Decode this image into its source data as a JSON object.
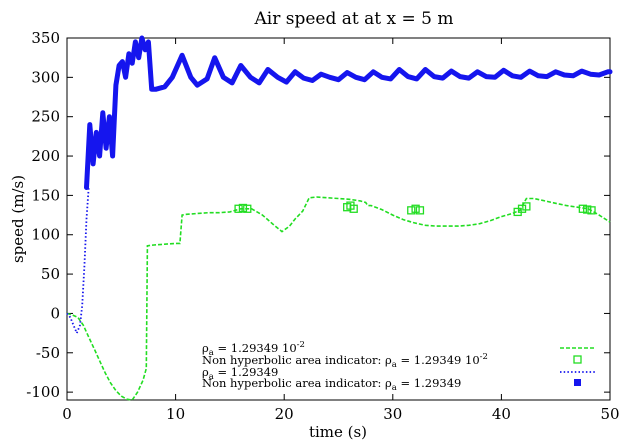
{
  "chart_data": {
    "type": "line",
    "title": "Air speed at at x = 5 m",
    "xlabel": "time (s)",
    "ylabel": "speed (m/s)",
    "xlim": [
      0,
      50
    ],
    "ylim": [
      -110,
      350
    ],
    "xticks": [
      0,
      10,
      20,
      30,
      40,
      50
    ],
    "yticks": [
      -100,
      -50,
      0,
      50,
      100,
      150,
      200,
      250,
      300,
      350
    ],
    "grid": false,
    "legend_position": "bottom-right",
    "colors": {
      "green": "#22dd22",
      "blue": "#1515ee"
    },
    "series": [
      {
        "legend": {
          "pre": "ρ",
          "sub": "a",
          "post": " = 1.29349 10",
          "sup": "-2"
        },
        "style": "dashed",
        "color": "green",
        "points": [
          [
            0,
            0
          ],
          [
            0.5,
            -2
          ],
          [
            1,
            -5
          ],
          [
            1.5,
            -15
          ],
          [
            2,
            -30
          ],
          [
            2.5,
            -45
          ],
          [
            3,
            -60
          ],
          [
            3.5,
            -75
          ],
          [
            4,
            -88
          ],
          [
            4.5,
            -98
          ],
          [
            5,
            -105
          ],
          [
            5.5,
            -109
          ],
          [
            6,
            -110
          ],
          [
            6.5,
            -100
          ],
          [
            7,
            -85
          ],
          [
            7.3,
            -70
          ],
          [
            7.4,
            86
          ],
          [
            8,
            87
          ],
          [
            9,
            88
          ],
          [
            10,
            89
          ],
          [
            10.4,
            89
          ],
          [
            10.6,
            125
          ],
          [
            11,
            126
          ],
          [
            12,
            127
          ],
          [
            13,
            128
          ],
          [
            14,
            128
          ],
          [
            15,
            129
          ],
          [
            15.5,
            131
          ],
          [
            16,
            133
          ],
          [
            17,
            133
          ],
          [
            18,
            125
          ],
          [
            19,
            113
          ],
          [
            19.8,
            104
          ],
          [
            20.5,
            111
          ],
          [
            21,
            120
          ],
          [
            21.7,
            130
          ],
          [
            22.3,
            147
          ],
          [
            23,
            148
          ],
          [
            24,
            147
          ],
          [
            25,
            146
          ],
          [
            26,
            145
          ],
          [
            27,
            143
          ],
          [
            27.5,
            141
          ],
          [
            27.7,
            137
          ],
          [
            28,
            137
          ],
          [
            29,
            132
          ],
          [
            30,
            125
          ],
          [
            31,
            119
          ],
          [
            32,
            115
          ],
          [
            33,
            112
          ],
          [
            34,
            111
          ],
          [
            35,
            111
          ],
          [
            36,
            111
          ],
          [
            37,
            112
          ],
          [
            38,
            114
          ],
          [
            39,
            118
          ],
          [
            40,
            123
          ],
          [
            41,
            127
          ],
          [
            41.7,
            131
          ],
          [
            42.3,
            146
          ],
          [
            43,
            146
          ],
          [
            44,
            143
          ],
          [
            45,
            140
          ],
          [
            46,
            137
          ],
          [
            47,
            135
          ],
          [
            48,
            133
          ],
          [
            49,
            125
          ],
          [
            50,
            116
          ]
        ]
      },
      {
        "legend": {
          "pre": "Non hyperbolic area indicator: ρ",
          "sub": "a",
          "post": " = 1.29349 10",
          "sup": "-2"
        },
        "style": "points",
        "color": "green",
        "points": [
          [
            15.8,
            133
          ],
          [
            16.2,
            134
          ],
          [
            16.6,
            133
          ],
          [
            25.8,
            135
          ],
          [
            26.1,
            137
          ],
          [
            26.4,
            133
          ],
          [
            31.7,
            131
          ],
          [
            32.1,
            133
          ],
          [
            32.5,
            131
          ],
          [
            41.5,
            129
          ],
          [
            41.9,
            133
          ],
          [
            42.3,
            136
          ],
          [
            47.5,
            133
          ],
          [
            47.9,
            132
          ],
          [
            48.3,
            131
          ]
        ]
      },
      {
        "legend": {
          "pre": "ρ",
          "sub": "a",
          "post": " = 1.29349",
          "sup": ""
        },
        "style": "dotted",
        "color": "blue",
        "points": [
          [
            0,
            0
          ],
          [
            0.3,
            -5
          ],
          [
            0.6,
            -15
          ],
          [
            0.9,
            -25
          ],
          [
            1.2,
            -15
          ],
          [
            1.4,
            10
          ],
          [
            1.6,
            60
          ],
          [
            1.8,
            120
          ],
          [
            2,
            160
          ]
        ]
      },
      {
        "legend": {
          "pre": "Non hyperbolic area indicator: ρ",
          "sub": "a",
          "post": " = 1.29349",
          "sup": ""
        },
        "style": "thick",
        "color": "blue",
        "points": [
          [
            1.8,
            160
          ],
          [
            2.1,
            240
          ],
          [
            2.4,
            190
          ],
          [
            2.7,
            230
          ],
          [
            3,
            200
          ],
          [
            3.3,
            255
          ],
          [
            3.6,
            210
          ],
          [
            3.9,
            250
          ],
          [
            4.2,
            200
          ],
          [
            4.5,
            290
          ],
          [
            4.8,
            315
          ],
          [
            5.1,
            320
          ],
          [
            5.4,
            300
          ],
          [
            5.7,
            330
          ],
          [
            6,
            318
          ],
          [
            6.3,
            345
          ],
          [
            6.6,
            325
          ],
          [
            6.9,
            350
          ],
          [
            7.2,
            335
          ],
          [
            7.5,
            345
          ],
          [
            7.8,
            285
          ],
          [
            8.2,
            285
          ],
          [
            9,
            288
          ],
          [
            9.7,
            300
          ],
          [
            10.6,
            328
          ],
          [
            11.4,
            300
          ],
          [
            12,
            290
          ],
          [
            12.9,
            298
          ],
          [
            13.6,
            325
          ],
          [
            14.4,
            300
          ],
          [
            15.2,
            293
          ],
          [
            16,
            315
          ],
          [
            16.9,
            300
          ],
          [
            17.7,
            293
          ],
          [
            18.5,
            310
          ],
          [
            19.4,
            300
          ],
          [
            20.2,
            294
          ],
          [
            21,
            307
          ],
          [
            21.8,
            299
          ],
          [
            22.6,
            296
          ],
          [
            23.4,
            304
          ],
          [
            24.2,
            300
          ],
          [
            25,
            297
          ],
          [
            25.8,
            306
          ],
          [
            26.6,
            300
          ],
          [
            27.4,
            297
          ],
          [
            28.2,
            307
          ],
          [
            29,
            300
          ],
          [
            29.8,
            298
          ],
          [
            30.6,
            310
          ],
          [
            31.4,
            301
          ],
          [
            32.2,
            298
          ],
          [
            33,
            310
          ],
          [
            33.8,
            301
          ],
          [
            34.6,
            299
          ],
          [
            35.4,
            308
          ],
          [
            36.2,
            301
          ],
          [
            37,
            299
          ],
          [
            37.8,
            307
          ],
          [
            38.6,
            301
          ],
          [
            39.4,
            300
          ],
          [
            40.2,
            309
          ],
          [
            41,
            302
          ],
          [
            41.8,
            300
          ],
          [
            42.6,
            308
          ],
          [
            43.4,
            302
          ],
          [
            44.2,
            301
          ],
          [
            45,
            307
          ],
          [
            45.8,
            303
          ],
          [
            46.6,
            302
          ],
          [
            47.4,
            308
          ],
          [
            48.2,
            304
          ],
          [
            49,
            303
          ],
          [
            49.8,
            307
          ],
          [
            50,
            307
          ]
        ]
      }
    ]
  }
}
